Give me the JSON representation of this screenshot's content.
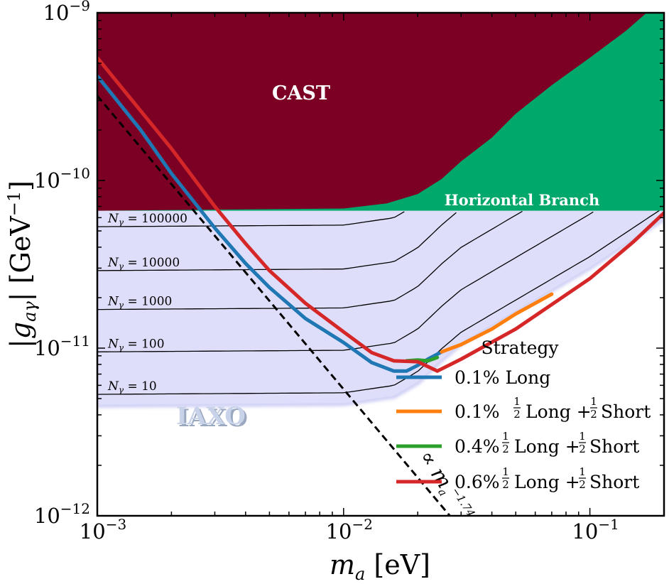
{
  "chart_data": {
    "type": "line",
    "xlabel": "m_a [eV]",
    "ylabel": "|g_aγ| [GeV⁻¹]",
    "xscale": "log",
    "yscale": "log",
    "xlim": [
      0.001,
      0.2
    ],
    "ylim": [
      1e-12,
      1e-09
    ],
    "x_ticks": [
      {
        "value": 0.001,
        "base": "10",
        "exp": "−3"
      },
      {
        "value": 0.01,
        "base": "10",
        "exp": "−2"
      },
      {
        "value": 0.1,
        "base": "10",
        "exp": "−1"
      }
    ],
    "y_ticks": [
      {
        "value": 1e-12,
        "base": "10",
        "exp": "−12"
      },
      {
        "value": 1e-11,
        "base": "10",
        "exp": "−11"
      },
      {
        "value": 1e-10,
        "base": "10",
        "exp": "−10"
      },
      {
        "value": 1e-09,
        "base": "10",
        "exp": "−9"
      }
    ],
    "regions": [
      {
        "name": "CAST",
        "color": "#7b0024"
      },
      {
        "name": "Horizontal Branch",
        "color": "#00a86b",
        "g_limit": 6.6e-11
      },
      {
        "name": "IAXO",
        "color": "#dedefa"
      }
    ],
    "cast_boundary": {
      "x": [
        0.001,
        0.01,
        0.015,
        0.02,
        0.025,
        0.03,
        0.04,
        0.05,
        0.07,
        0.1,
        0.14,
        0.17
      ],
      "y": [
        6.6e-11,
        6.8e-11,
        7.3e-11,
        8.3e-11,
        1.02e-10,
        1.3e-10,
        1.8e-10,
        2.5e-10,
        3.7e-10,
        5.4e-10,
        7.8e-10,
        1e-09
      ]
    },
    "iaxo_region": {
      "x": [
        0.001,
        0.01,
        0.016,
        0.02,
        0.025,
        0.03,
        0.05,
        0.1,
        0.2
      ],
      "lower": [
        4.6e-12,
        4.7e-12,
        5.2e-12,
        6.3e-12,
        8.6e-12,
        1.08e-11,
        1.68e-11,
        3.05e-11,
        6e-11
      ],
      "upper": 6.6e-11
    },
    "contours": [
      {
        "label": "N_γ = 100000",
        "name": "N",
        "sub": "γ",
        "value": "= 100000",
        "y": 5.3e-11
      },
      {
        "label": "N_γ = 10000",
        "name": "N",
        "sub": "γ",
        "value": "= 10000",
        "y": 2.9e-11
      },
      {
        "label": "N_γ = 1000",
        "name": "N",
        "sub": "γ",
        "value": "= 1000",
        "y": 1.7e-11
      },
      {
        "label": "N_γ = 100",
        "name": "N",
        "sub": "γ",
        "value": "= 100",
        "y": 9.5e-12
      },
      {
        "label": "N_γ = 10",
        "name": "N",
        "sub": "γ",
        "value": "= 10",
        "y": 5.3e-12
      }
    ],
    "power_law": {
      "label": "∝ m_a^−1.74",
      "text": "∝ m",
      "sub": "a",
      "sup": "−1.74",
      "x": [
        0.001,
        0.027
      ],
      "y": [
        3.2e-10,
        1e-12
      ]
    },
    "legend": {
      "title": "Strategy",
      "position": "lower-right"
    },
    "series": [
      {
        "name": "0.1% Long",
        "legend_parts": [
          "0.1% Long"
        ],
        "color": "#1f77b4",
        "x": [
          0.001,
          0.0015,
          0.002,
          0.003,
          0.004,
          0.005,
          0.007,
          0.01,
          0.013,
          0.016,
          0.018,
          0.02,
          0.022,
          0.025
        ],
        "y": [
          4.2e-10,
          2e-10,
          1.1e-10,
          5.2e-11,
          3.2e-11,
          2.3e-11,
          1.5e-11,
          1.08e-11,
          8.2e-12,
          7.3e-12,
          7.3e-12,
          7.9e-12,
          8.6e-12,
          9.5e-12
        ]
      },
      {
        "name": "0.1% ½ Long + ½Short",
        "legend_parts": [
          "0.1%",
          "Long +",
          "Short"
        ],
        "color": "#ff7f0e",
        "x": [
          0.025,
          0.03,
          0.04,
          0.05,
          0.07
        ],
        "y": [
          9.5e-12,
          1.05e-11,
          1.3e-11,
          1.6e-11,
          2.1e-11
        ]
      },
      {
        "name": "0.4%½ Long + ½Short",
        "legend_parts": [
          "0.4%",
          "Long +",
          "Short"
        ],
        "color": "#2ca02c",
        "x": [
          0.018,
          0.02,
          0.022,
          0.024
        ],
        "y": [
          8.4e-12,
          8.5e-12,
          8.4e-12,
          8.8e-12
        ]
      },
      {
        "name": "0.6%½ Long + ½Short",
        "legend_parts": [
          "0.6%",
          "Long +",
          "Short"
        ],
        "color": "#d62728",
        "x": [
          0.001,
          0.0015,
          0.002,
          0.003,
          0.004,
          0.005,
          0.007,
          0.01,
          0.013,
          0.016,
          0.02,
          0.024,
          0.03,
          0.05,
          0.1,
          0.15,
          0.2
        ],
        "y": [
          5.4e-10,
          2.6e-10,
          1.55e-10,
          7e-11,
          4.2e-11,
          2.9e-11,
          1.85e-11,
          1.25e-11,
          9.4e-12,
          8.4e-12,
          8.3e-12,
          7.3e-12,
          8.6e-12,
          1.3e-11,
          2.6e-11,
          4.3e-11,
          6.4e-11
        ]
      }
    ]
  }
}
